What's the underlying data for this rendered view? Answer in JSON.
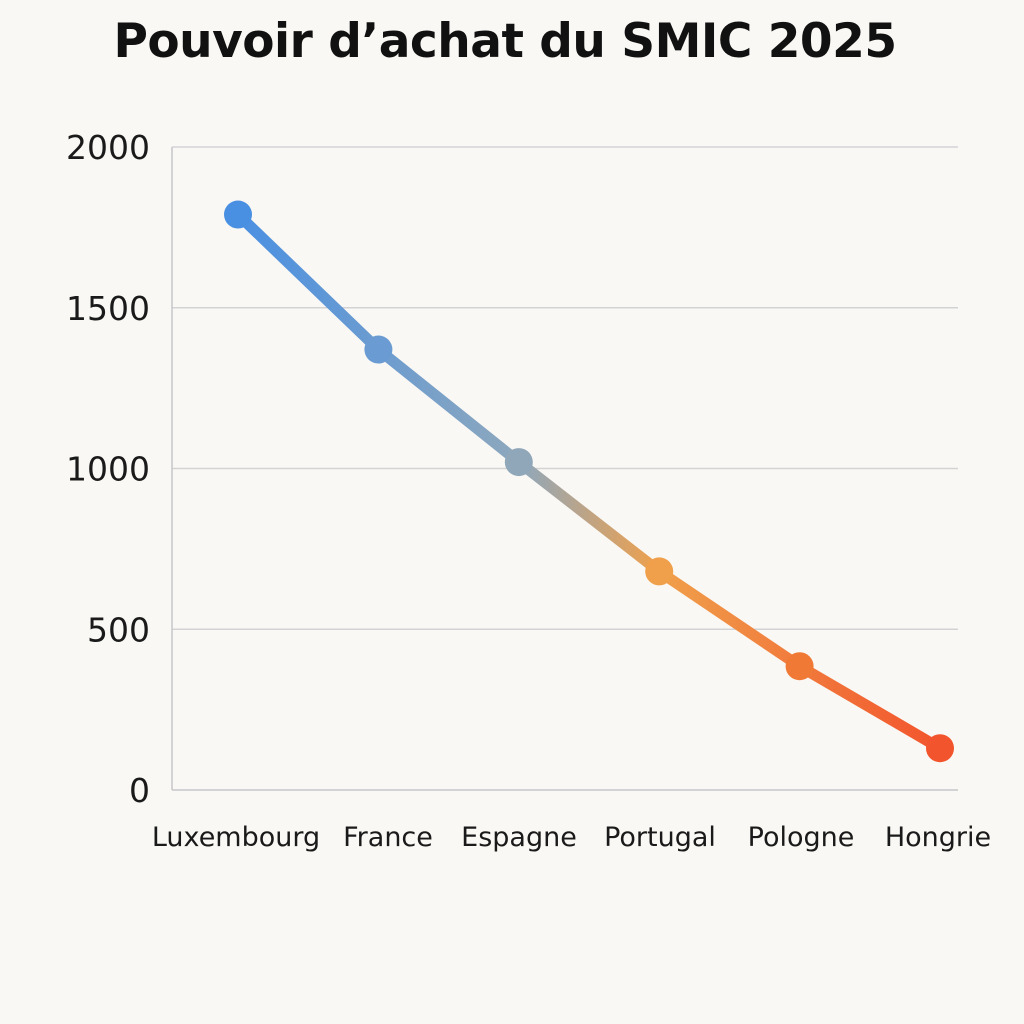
{
  "chart_data": {
    "type": "line",
    "title": "Pouvoir d’achat du SMIC 2025",
    "xlabel": "",
    "ylabel": "",
    "categories": [
      "Luxembourg",
      "France",
      "Espagne",
      "Portugal",
      "Pologne",
      "Hongrie"
    ],
    "series": [
      {
        "values": [
          1790,
          1370,
          1020,
          680,
          385,
          130
        ]
      }
    ],
    "ylim": [
      0,
      2000
    ],
    "yticks": [
      0,
      500,
      1000,
      1500,
      2000
    ],
    "grid": true,
    "legend": "none",
    "point_colors": [
      "#4a90e2",
      "#6a9bd3",
      "#8fa7b9",
      "#f0a04b",
      "#f07a35",
      "#f2542d"
    ]
  }
}
